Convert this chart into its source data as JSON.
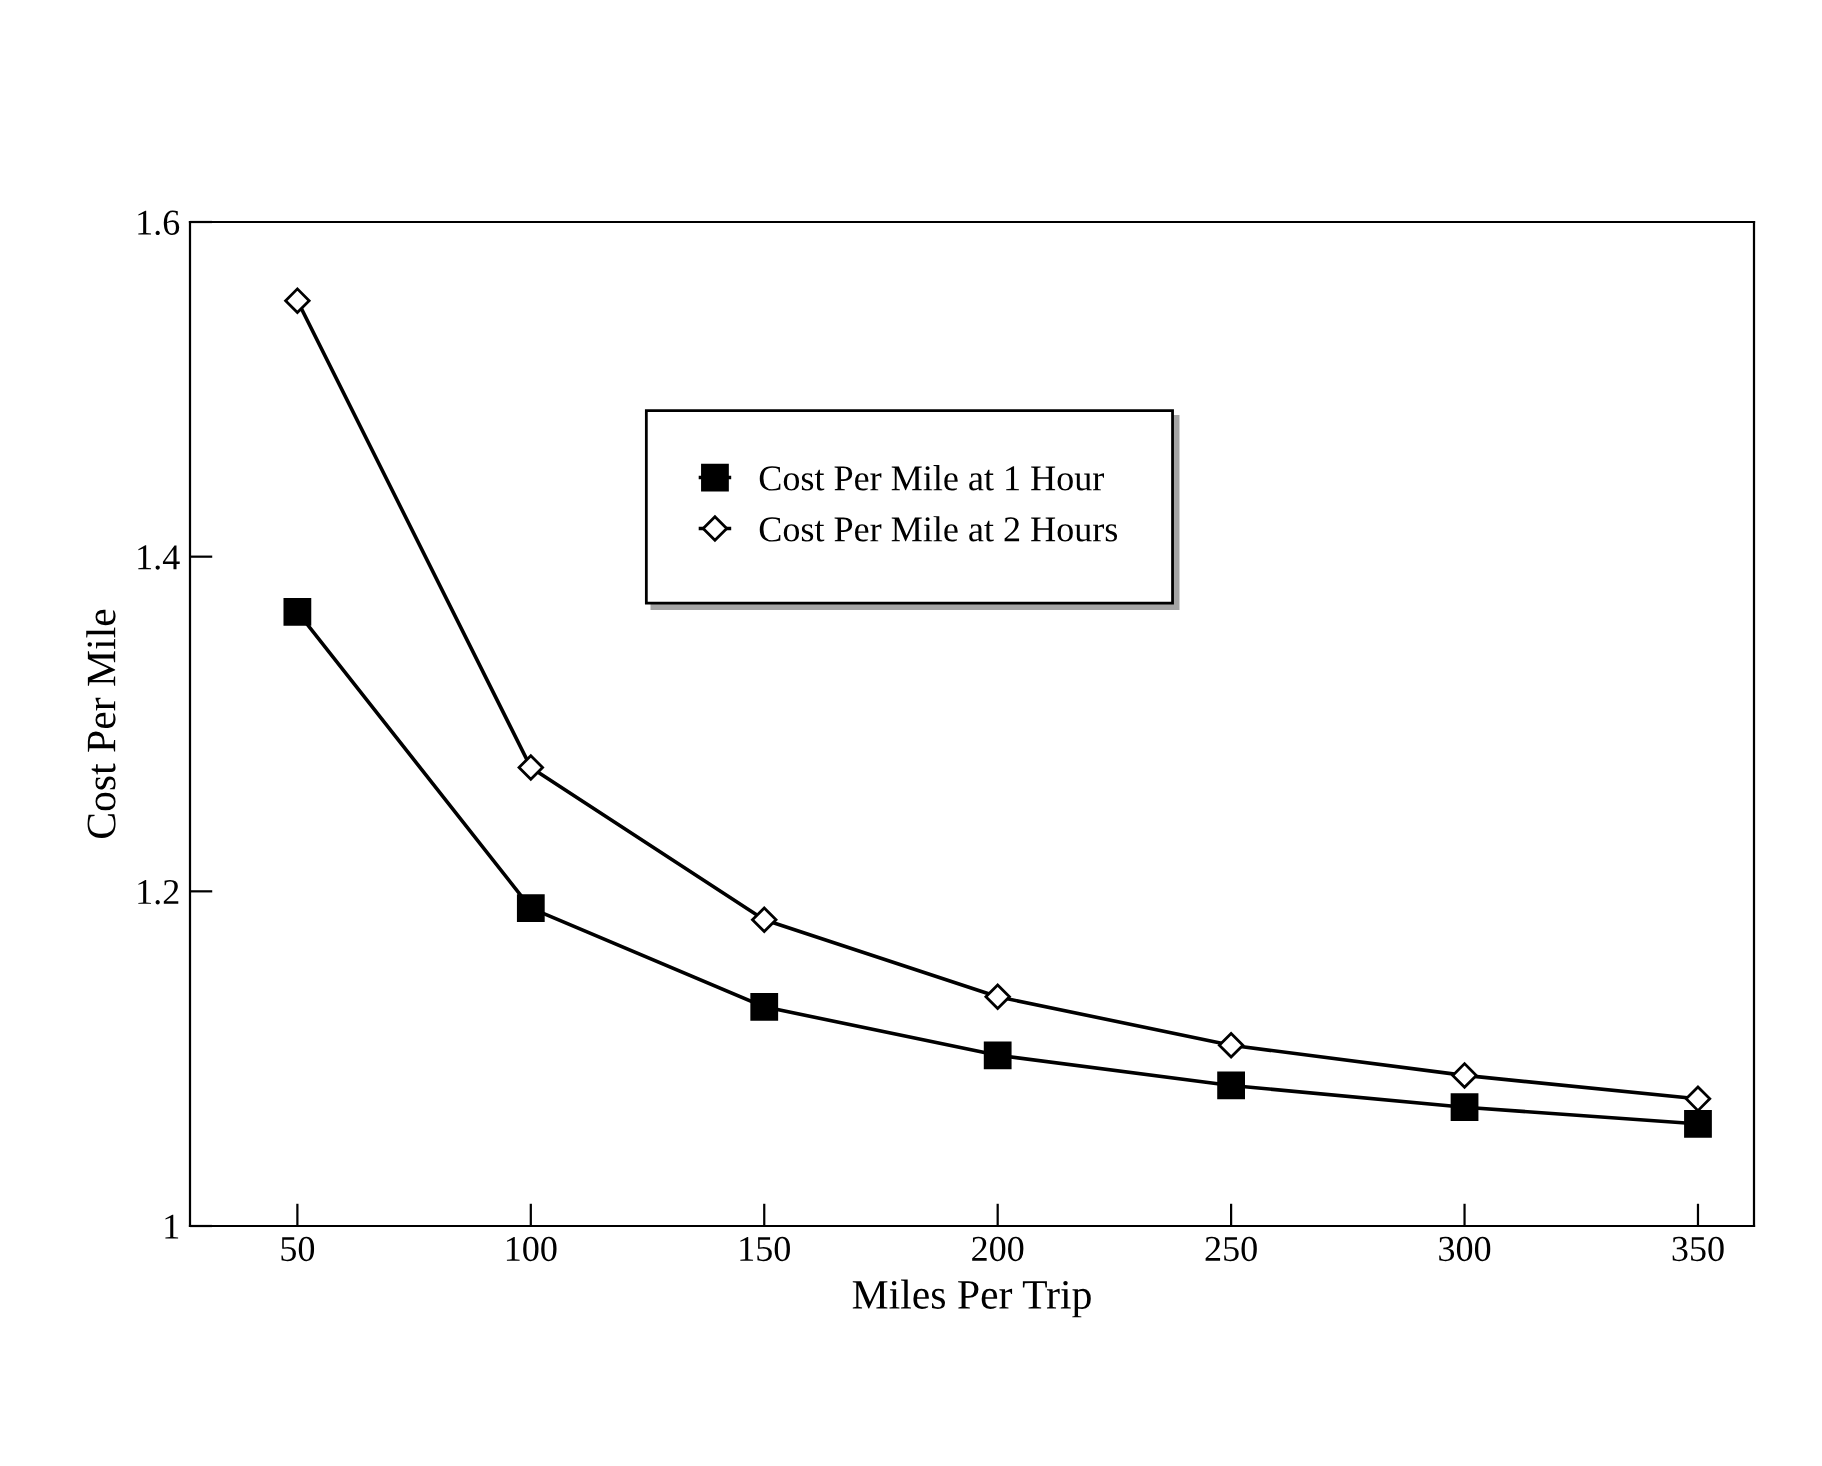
{
  "chart_data": {
    "type": "line",
    "xlabel": "Miles Per Trip",
    "ylabel": "Cost Per Mile",
    "x": [
      50,
      100,
      150,
      200,
      250,
      300,
      350
    ],
    "series": [
      {
        "name": "Cost Per Mile at 1 Hour",
        "color": "#000000",
        "marker": "square",
        "values": [
          1.367,
          1.19,
          1.131,
          1.102,
          1.084,
          1.071,
          1.061
        ]
      },
      {
        "name": "Cost Per Mile at 2 Hours",
        "color": "#000000",
        "marker": "diamond",
        "values": [
          1.553,
          1.274,
          1.183,
          1.137,
          1.108,
          1.09,
          1.076
        ]
      }
    ],
    "xlim": [
      27,
      362
    ],
    "ylim": [
      1,
      1.6
    ],
    "xticks": [
      50,
      100,
      150,
      200,
      250,
      300,
      350
    ],
    "yticks": [
      1,
      1.2,
      1.4,
      1.6
    ],
    "grid": false,
    "legend": "top",
    "line_style": "solid"
  }
}
